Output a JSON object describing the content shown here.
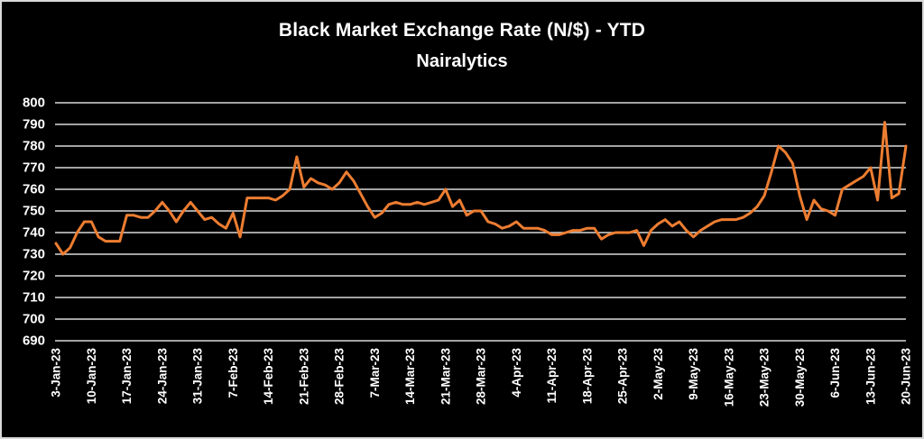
{
  "window": {
    "background_color": "#000000",
    "border_color": "#d9d9d9",
    "text_color": "#ffffff"
  },
  "header": {
    "title": "Black Market Exchange Rate (N/$) - YTD",
    "subtitle": "Nairalytics"
  },
  "chart_data": {
    "type": "line",
    "title": "Black Market Exchange Rate (N/$) - YTD",
    "subtitle": "Nairalytics",
    "xlabel": "",
    "ylabel": "",
    "ylim": [
      690,
      800
    ],
    "y_step": 10,
    "y_tick_labels": [
      "800",
      "790",
      "780",
      "770",
      "760",
      "750",
      "740",
      "730",
      "720",
      "710",
      "700",
      "690"
    ],
    "x_tick_labels": [
      "3-Jan-23",
      "10-Jan-23",
      "17-Jan-23",
      "24-Jan-23",
      "31-Jan-23",
      "7-Feb-23",
      "14-Feb-23",
      "21-Feb-23",
      "28-Feb-23",
      "7-Mar-23",
      "14-Mar-23",
      "21-Mar-23",
      "28-Mar-23",
      "4-Apr-23",
      "11-Apr-23",
      "18-Apr-23",
      "25-Apr-23",
      "2-May-23",
      "9-May-23",
      "16-May-23",
      "23-May-23",
      "30-May-23",
      "6-Jun-23",
      "13-Jun-23",
      "20-Jun-23"
    ],
    "points_per_tick": 5,
    "x_unit": "one point per weekday, 3-Jan-2023 through 20-Jun-2023, ticks weekly",
    "grid": true,
    "grid_color": "#d9d9d9",
    "axis_text_color": "#ffffff",
    "legend": "none",
    "series": [
      {
        "name": "Black market exchange rate (N/$)",
        "color": "#ED7D31",
        "values": [
          735,
          730,
          733,
          740,
          745,
          745,
          738,
          736,
          736,
          736,
          748,
          748,
          747,
          747,
          750,
          754,
          750,
          745,
          750,
          754,
          750,
          746,
          747,
          744,
          742,
          749,
          738,
          756,
          756,
          756,
          756,
          755,
          757,
          760,
          775,
          761,
          765,
          763,
          762,
          760,
          763,
          768,
          764,
          758,
          752,
          747,
          749,
          753,
          754,
          753,
          753,
          754,
          753,
          754,
          755,
          760,
          752,
          755,
          748,
          750,
          750,
          745,
          744,
          742,
          743,
          745,
          742,
          742,
          742,
          741,
          739,
          739,
          740,
          741,
          741,
          742,
          742,
          737,
          739,
          740,
          740,
          740,
          741,
          734,
          741,
          744,
          746,
          743,
          745,
          741,
          738,
          741,
          743,
          745,
          746,
          746,
          746,
          747,
          749,
          752,
          757,
          768,
          780,
          777,
          772,
          757,
          746,
          755,
          751,
          750,
          748,
          760,
          762,
          764,
          766,
          770,
          755,
          791,
          756,
          758,
          780
        ]
      }
    ]
  }
}
